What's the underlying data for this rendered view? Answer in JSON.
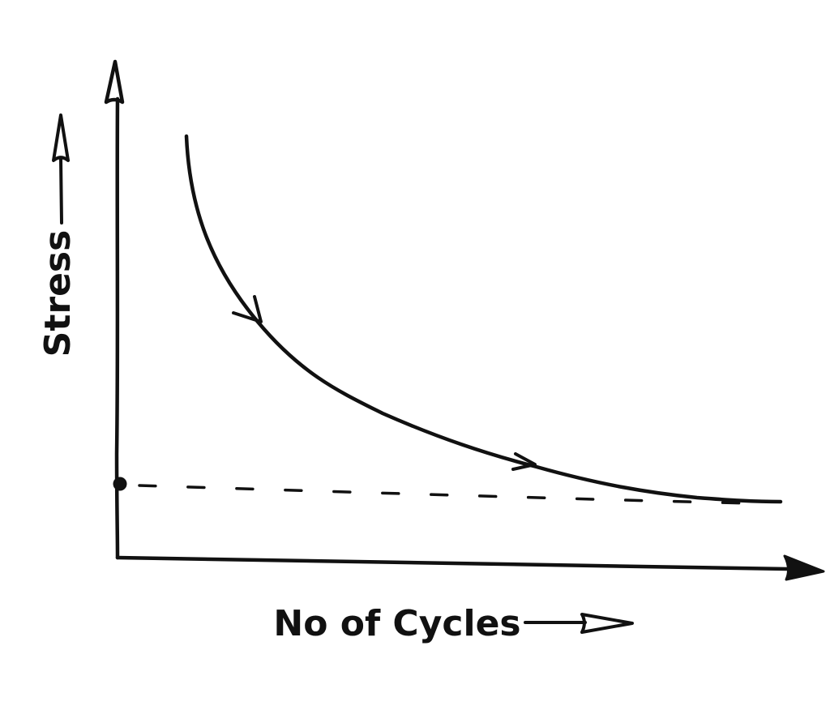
{
  "diagram": {
    "y_axis_label": "Stress",
    "x_axis_label": "No of Cycles"
  }
}
